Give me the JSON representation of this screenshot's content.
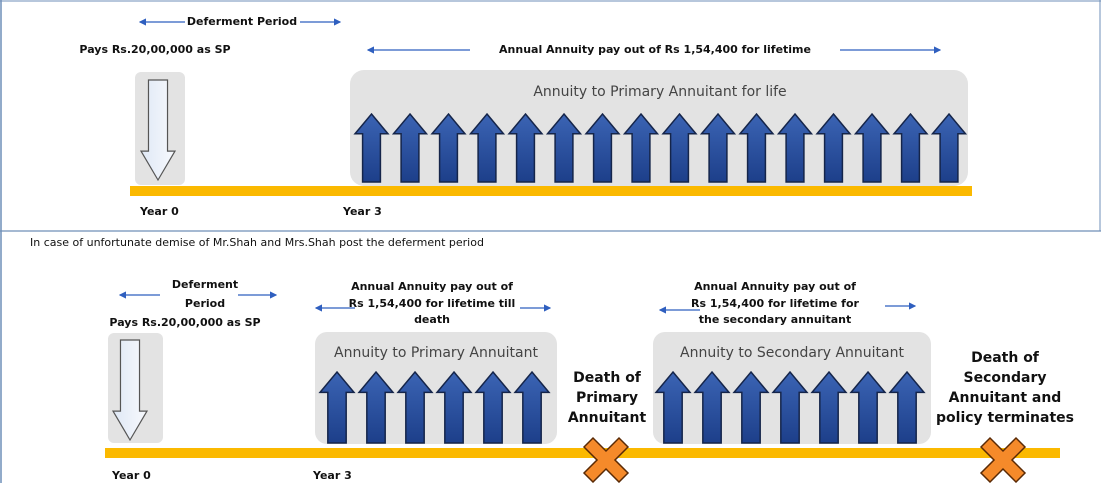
{
  "top": {
    "deferment": "Deferment Period",
    "payment": "Pays Rs.20,00,000 as SP",
    "payout": "Annual Annuity pay out of Rs 1,54,400 for lifetime",
    "box": "Annuity to Primary Annuitant for life",
    "year0": "Year 0",
    "year3": "Year 3"
  },
  "bottom": {
    "caption": "In case of unfortunate demise of Mr.Shah and Mrs.Shah post the deferment period",
    "deferment": [
      "Deferment",
      "Period"
    ],
    "payment": "Pays Rs.20,00,000 as SP",
    "payout_primary": [
      "Annual Annuity pay out of",
      "Rs 1,54,400 for lifetime till",
      "death"
    ],
    "box_primary": "Annuity to Primary Annuitant",
    "death_primary": [
      "Death of",
      "Primary",
      "Annuitant"
    ],
    "payout_secondary": [
      "Annual Annuity pay out of",
      "Rs 1,54,400 for lifetime for",
      "the secondary annuitant"
    ],
    "box_secondary": "Annuity to Secondary Annuitant",
    "death_secondary": [
      "Death of",
      "Secondary",
      "Annuitant and",
      "policy terminates"
    ],
    "year0": "Year 0",
    "year3": "Year 3"
  }
}
